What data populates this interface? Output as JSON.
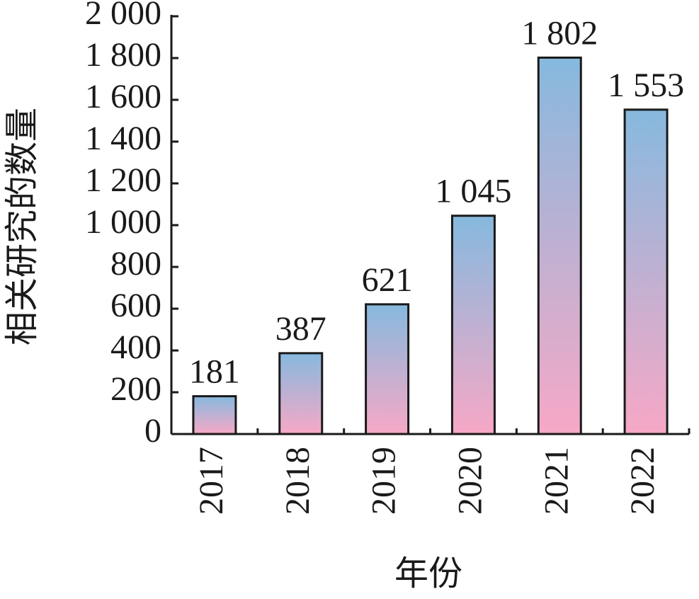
{
  "chart_data": {
    "type": "bar",
    "x_label": "年份",
    "y_label": "相关研究的数量",
    "categories": [
      "2017",
      "2018",
      "2019",
      "2020",
      "2021",
      "2022"
    ],
    "values": [
      181,
      387,
      621,
      1045,
      1802,
      1553
    ],
    "value_labels": [
      "181",
      "387",
      "621",
      "1 045",
      "1 802",
      "1 553"
    ],
    "gradient": [
      "#86b9de",
      "#f7a8c6"
    ],
    "ylim": [
      0,
      2000
    ],
    "yticks": [
      0,
      200,
      400,
      600,
      800,
      {
        "value": 1000,
        "label": "1 000"
      },
      {
        "value": 1200,
        "label": "1 200"
      },
      {
        "value": 1400,
        "label": "1 400"
      },
      {
        "value": 1600,
        "label": "1 600"
      },
      {
        "value": 1800,
        "label": "1 800"
      },
      {
        "value": 2000,
        "label": "2 000"
      }
    ]
  }
}
